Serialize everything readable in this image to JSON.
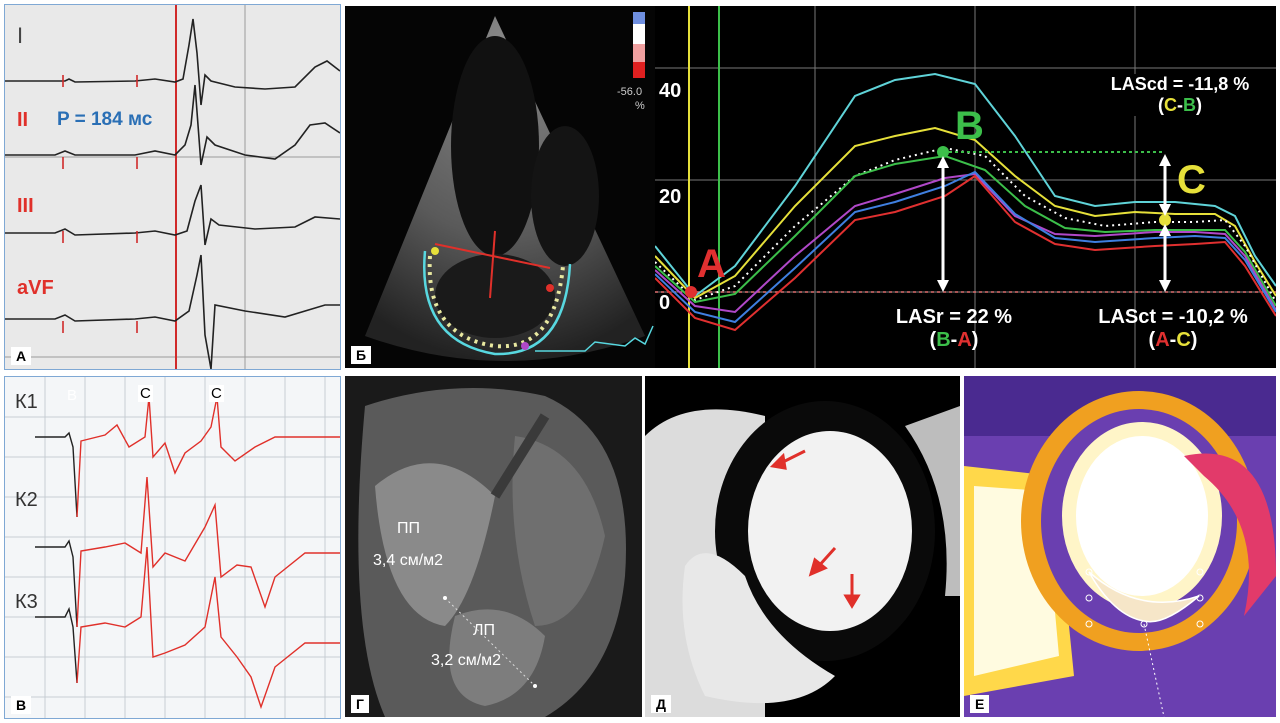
{
  "panels": {
    "a": {
      "label": "А",
      "leads": [
        "I",
        "II",
        "III",
        "aVF"
      ],
      "p_annotation": "P = 184 мс"
    },
    "b": {
      "label": "Б",
      "colorbar_value": "-56.0",
      "colorbar_unit": "%"
    },
    "strain": {
      "y_ticks": [
        "40",
        "20",
        "0"
      ],
      "points": {
        "A": "A",
        "B": "B",
        "C": "C"
      },
      "lascd": "LAScd = -11,8 %",
      "lascd_open": "(",
      "lascd_c": "C",
      "lascd_dash": "-",
      "lascd_b": "B",
      "lascd_close": ")",
      "lasr": "LASr = 22 %",
      "lasr_open": "(",
      "lasr_b": "B",
      "lasr_dash": "-",
      "lasr_a": "A",
      "lasr_close": ")",
      "lasct": "LASct = -10,2 %",
      "lasct_open": "(",
      "lasct_a": "A",
      "lasct_dash": "-",
      "lasct_c": "C",
      "lasct_close": ")"
    },
    "v": {
      "label": "В",
      "channels": [
        "К1",
        "К2",
        "К3"
      ],
      "marker_b": "B",
      "marker_c1": "C",
      "marker_c2": "C"
    },
    "g": {
      "label": "Г",
      "ra_name": "ПП",
      "ra_value": "3,4 см/м2",
      "la_name": "ЛП",
      "la_value": "3,2 см/м2"
    },
    "d": {
      "label": "Д"
    },
    "e": {
      "label": "Е"
    }
  },
  "colors": {
    "ecg_red": "#e0302a",
    "annotation_blue": "#2a6fb5",
    "strain_cyan": "#5fd3d8",
    "strain_yellow": "#e6e03a",
    "strain_green": "#3cbf4a",
    "strain_purple": "#b048c8",
    "strain_blue": "#3f7fe0",
    "strain_red": "#e03030"
  }
}
